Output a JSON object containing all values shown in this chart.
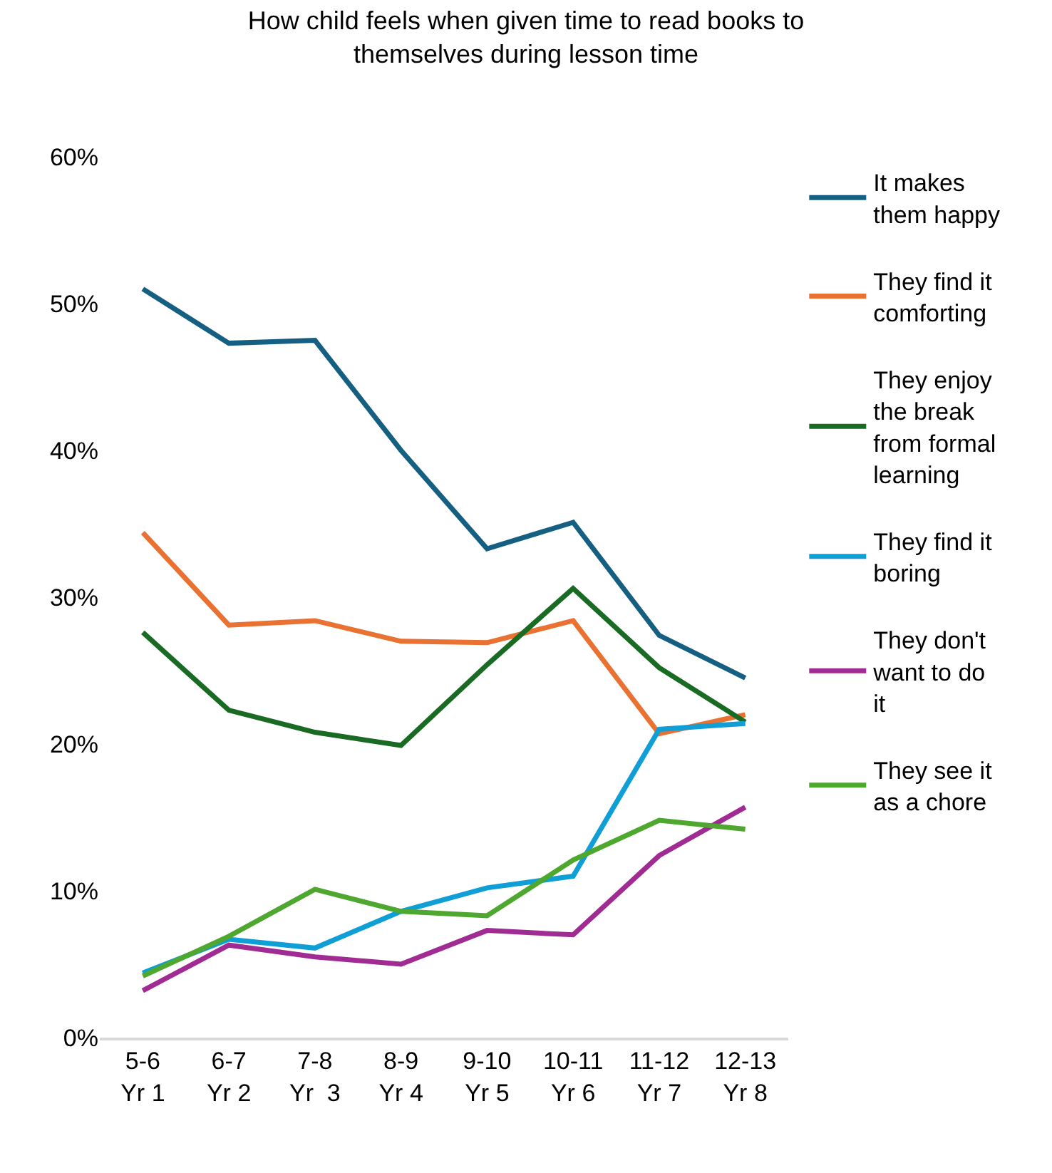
{
  "chart_data": {
    "type": "line",
    "title": "How child feels when given time to read books to themselves during lesson time",
    "categories": [
      "5-6\nYr 1",
      "6-7\nYr 2",
      "7-8\nYr  3",
      "8-9\nYr 4",
      "9-10\nYr 5",
      "10-11\nYr 6",
      "11-12\nYr 7",
      "12-13\nYr 8"
    ],
    "ylim": [
      0,
      60
    ],
    "yticks": [
      {
        "value": 0,
        "label": "0%"
      },
      {
        "value": 10,
        "label": "10%"
      },
      {
        "value": 20,
        "label": "20%"
      },
      {
        "value": 30,
        "label": "30%"
      },
      {
        "value": 40,
        "label": "40%"
      },
      {
        "value": 50,
        "label": "50%"
      },
      {
        "value": 60,
        "label": "60%"
      }
    ],
    "grid": false,
    "legend": "right",
    "marker": "none",
    "line_style": "solid",
    "series": [
      {
        "name": "It makes them happy",
        "color": "#156082",
        "values": [
          51.0,
          47.3,
          47.5,
          40.0,
          33.3,
          35.1,
          27.4,
          24.5
        ]
      },
      {
        "name": "They find it comforting",
        "color": "#e97132",
        "values": [
          34.4,
          28.1,
          28.4,
          27.0,
          26.9,
          28.4,
          20.7,
          22.0
        ]
      },
      {
        "name": "They enjoy the break from formal learning",
        "color": "#196b24",
        "values": [
          27.6,
          22.3,
          20.8,
          19.9,
          25.4,
          30.6,
          25.2,
          21.5
        ]
      },
      {
        "name": "They find it boring",
        "color": "#0f9ed5",
        "values": [
          4.4,
          6.7,
          6.1,
          8.6,
          10.2,
          11.0,
          21.0,
          21.4
        ]
      },
      {
        "name": "They don't want to do it",
        "color": "#a02b93",
        "values": [
          3.2,
          6.3,
          5.5,
          5.0,
          7.3,
          7.0,
          12.4,
          15.7
        ]
      },
      {
        "name": "They see it as a chore",
        "color": "#4ea72e",
        "values": [
          4.2,
          6.9,
          10.1,
          8.6,
          8.3,
          12.1,
          14.8,
          14.2
        ]
      }
    ]
  }
}
